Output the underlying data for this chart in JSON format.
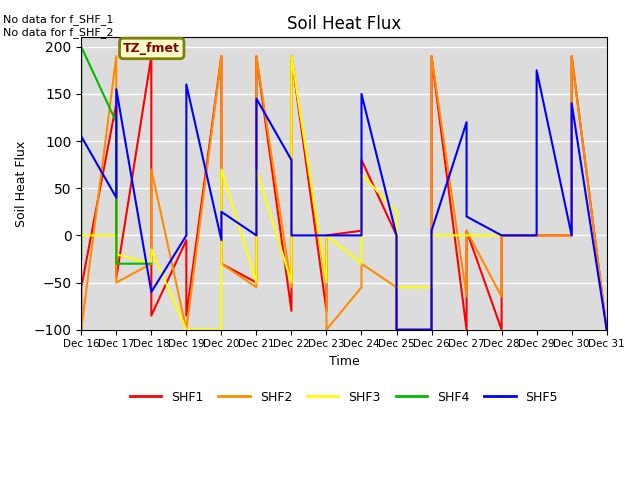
{
  "title": "Soil Heat Flux",
  "xlabel": "Time",
  "ylabel": "Soil Heat Flux",
  "ylim": [
    -100,
    210
  ],
  "xlim": [
    0,
    15
  ],
  "background_color": "#dcdcdc",
  "annotation_text": "No data for f_SHF_1\nNo data for f_SHF_2",
  "tz_label": "TZ_fmet",
  "x_tick_labels": [
    "Dec 16",
    "Dec 17",
    "Dec 18",
    "Dec 19",
    "Dec 20",
    "Dec 21",
    "Dec 22",
    "Dec 23",
    "Dec 24",
    "Dec 25",
    "Dec 26",
    "Dec 27",
    "Dec 28",
    "Dec 29",
    "Dec 30",
    "Dec 31"
  ],
  "series": {
    "SHF1": {
      "color": "#ff0000",
      "x": [
        0,
        0,
        1,
        1,
        2,
        2,
        3,
        3,
        4,
        4,
        5,
        5,
        6,
        6,
        7,
        7,
        8,
        8,
        9,
        9,
        10,
        10,
        11,
        11,
        12,
        12,
        13,
        13,
        14,
        14,
        15
      ],
      "y": [
        -100,
        -55,
        140,
        -45,
        190,
        -85,
        -5,
        -85,
        190,
        -30,
        -50,
        190,
        -80,
        190,
        -80,
        0,
        5,
        80,
        0,
        -100,
        -100,
        190,
        -100,
        5,
        -100,
        0,
        0,
        0,
        0,
        190,
        -100
      ]
    },
    "SHF2": {
      "color": "#ff8c00",
      "x": [
        0,
        0,
        1,
        1,
        2,
        2,
        3,
        3,
        4,
        4,
        5,
        5,
        6,
        6,
        7,
        7,
        8,
        8,
        9,
        9,
        10,
        10,
        11,
        11,
        12,
        12,
        13,
        13,
        14,
        14,
        15
      ],
      "y": [
        -100,
        -100,
        190,
        -50,
        -30,
        70,
        -100,
        -100,
        190,
        -30,
        -55,
        190,
        -55,
        190,
        -55,
        -100,
        -55,
        -30,
        -55,
        -100,
        -100,
        190,
        -65,
        5,
        -65,
        0,
        0,
        0,
        0,
        190,
        -100
      ]
    },
    "SHF3": {
      "color": "#ffff00",
      "x": [
        0,
        1,
        1,
        2,
        2,
        3,
        3,
        4,
        4,
        5,
        5,
        6,
        6,
        7,
        7,
        8,
        8,
        9,
        9,
        10,
        10,
        11,
        11,
        12
      ],
      "y": [
        0,
        0,
        -20,
        -30,
        -15,
        -100,
        -100,
        -100,
        70,
        -50,
        70,
        -50,
        190,
        -50,
        0,
        -30,
        65,
        25,
        -55,
        -55,
        0,
        0,
        0,
        0
      ]
    },
    "SHF4": {
      "color": "#00bb00",
      "x": [
        0,
        0,
        1,
        1,
        2
      ],
      "y": [
        -25,
        200,
        120,
        -30,
        -30
      ]
    },
    "SHF5": {
      "color": "#0000ff",
      "x": [
        0,
        0,
        1,
        1,
        2,
        2,
        3,
        3,
        4,
        4,
        5,
        5,
        6,
        6,
        7,
        7,
        8,
        8,
        9,
        9,
        10,
        10,
        11,
        11,
        12,
        12,
        13,
        13,
        14,
        14,
        15
      ],
      "y": [
        100,
        105,
        40,
        155,
        -60,
        -60,
        0,
        160,
        -5,
        25,
        0,
        145,
        80,
        0,
        0,
        0,
        0,
        150,
        0,
        -100,
        -100,
        5,
        120,
        20,
        0,
        0,
        0,
        175,
        0,
        140,
        -100
      ]
    }
  },
  "legend_order": [
    "SHF1",
    "SHF2",
    "SHF3",
    "SHF4",
    "SHF5"
  ],
  "legend_colors": {
    "SHF1": "#ff0000",
    "SHF2": "#ff8c00",
    "SHF3": "#ffff00",
    "SHF4": "#00bb00",
    "SHF5": "#0000ff"
  }
}
